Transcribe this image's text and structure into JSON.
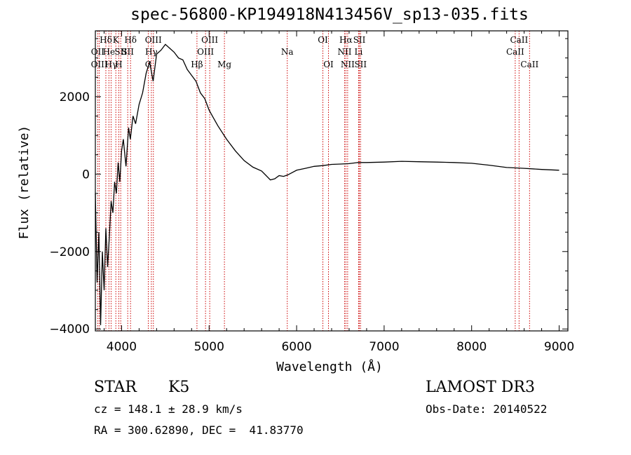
{
  "chart_data": {
    "type": "line",
    "title": "spec-56800-KP194918N413456V_sp13-035.fits",
    "xlabel": "Wavelength (Å)",
    "ylabel": "Flux (relative)",
    "xlim": [
      3700,
      9100
    ],
    "ylim": [
      -4050,
      3700
    ],
    "x_ticks": [
      4000,
      5000,
      6000,
      7000,
      8000,
      9000
    ],
    "y_ticks": [
      -4000,
      -2000,
      0,
      2000
    ],
    "line_color": "#000000",
    "marker_color": "#cc0000",
    "spectrum": {
      "x": [
        3700,
        3720,
        3740,
        3760,
        3780,
        3800,
        3820,
        3840,
        3860,
        3880,
        3900,
        3920,
        3940,
        3960,
        3980,
        4000,
        4020,
        4050,
        4080,
        4100,
        4130,
        4160,
        4200,
        4240,
        4280,
        4320,
        4360,
        4400,
        4450,
        4500,
        4550,
        4600,
        4650,
        4700,
        4750,
        4800,
        4850,
        4900,
        4950,
        5000,
        5050,
        5100,
        5200,
        5300,
        5400,
        5500,
        5600,
        5700,
        5750,
        5800,
        5850,
        5900,
        6000,
        6100,
        6200,
        6300,
        6400,
        6500,
        6600,
        6700,
        6800,
        7000,
        7200,
        7400,
        7600,
        7800,
        8000,
        8200,
        8400,
        8600,
        8800,
        9000
      ],
      "y": [
        -500,
        -2800,
        -1500,
        -3900,
        -2000,
        -3000,
        -1400,
        -2400,
        -1600,
        -700,
        -1000,
        -200,
        -500,
        300,
        -200,
        600,
        900,
        200,
        1200,
        900,
        1500,
        1300,
        1800,
        2100,
        2600,
        2900,
        2400,
        3100,
        3200,
        3350,
        3250,
        3150,
        3000,
        2950,
        2700,
        2550,
        2400,
        2100,
        1950,
        1650,
        1450,
        1250,
        900,
        600,
        350,
        180,
        80,
        -150,
        -120,
        -40,
        -60,
        -20,
        100,
        150,
        200,
        220,
        250,
        260,
        270,
        300,
        300,
        310,
        330,
        320,
        310,
        300,
        280,
        230,
        170,
        150,
        120,
        100
      ]
    },
    "lines": [
      {
        "label": "Hδ",
        "x": 3820,
        "row": 1
      },
      {
        "label": "OII",
        "x": 3727,
        "row": 2
      },
      {
        "label": "OIII",
        "x": 3745,
        "row": 3
      },
      {
        "label": "He",
        "x": 3855,
        "row": 2
      },
      {
        "label": "Hγ",
        "x": 3880,
        "row": 3
      },
      {
        "label": "K",
        "x": 3934,
        "row": 1
      },
      {
        "label": "SII",
        "x": 3990,
        "row": 2
      },
      {
        "label": "H",
        "x": 3968,
        "row": 3
      },
      {
        "label": "Hδ",
        "x": 4102,
        "row": 1
      },
      {
        "label": "SII",
        "x": 4070,
        "row": 2
      },
      {
        "label": "OIII",
        "x": 4363,
        "row": 1
      },
      {
        "label": "Hγ",
        "x": 4340,
        "row": 2
      },
      {
        "label": "G",
        "x": 4305,
        "row": 3
      },
      {
        "label": "Hβ",
        "x": 4861,
        "row": 3
      },
      {
        "label": "OIII",
        "x": 5007,
        "row": 1
      },
      {
        "label": "OIII",
        "x": 4959,
        "row": 2
      },
      {
        "label": "Mg",
        "x": 5175,
        "row": 3
      },
      {
        "label": "Na",
        "x": 5893,
        "row": 2
      },
      {
        "label": "OI",
        "x": 6300,
        "row": 1
      },
      {
        "label": "OI",
        "x": 6364,
        "row": 3
      },
      {
        "label": "Hα",
        "x": 6563,
        "row": 1
      },
      {
        "label": "NII",
        "x": 6548,
        "row": 2
      },
      {
        "label": "NII",
        "x": 6583,
        "row": 3
      },
      {
        "label": "SII",
        "x": 6717,
        "row": 1
      },
      {
        "label": "Li",
        "x": 6708,
        "row": 2
      },
      {
        "label": "SII",
        "x": 6731,
        "row": 3
      },
      {
        "label": "CaII",
        "x": 8542,
        "row": 1
      },
      {
        "label": "CaII",
        "x": 8498,
        "row": 2
      },
      {
        "label": "CaII",
        "x": 8662,
        "row": 3
      }
    ]
  },
  "annotations": {
    "object_class": "STAR",
    "subclass": "K5",
    "survey": "LAMOST DR3",
    "cz": "cz = 148.1 ± 28.9 km/s",
    "obs_date": "Obs-Date: 20140522",
    "coords": "RA = 300.62890, DEC =  41.83770"
  }
}
